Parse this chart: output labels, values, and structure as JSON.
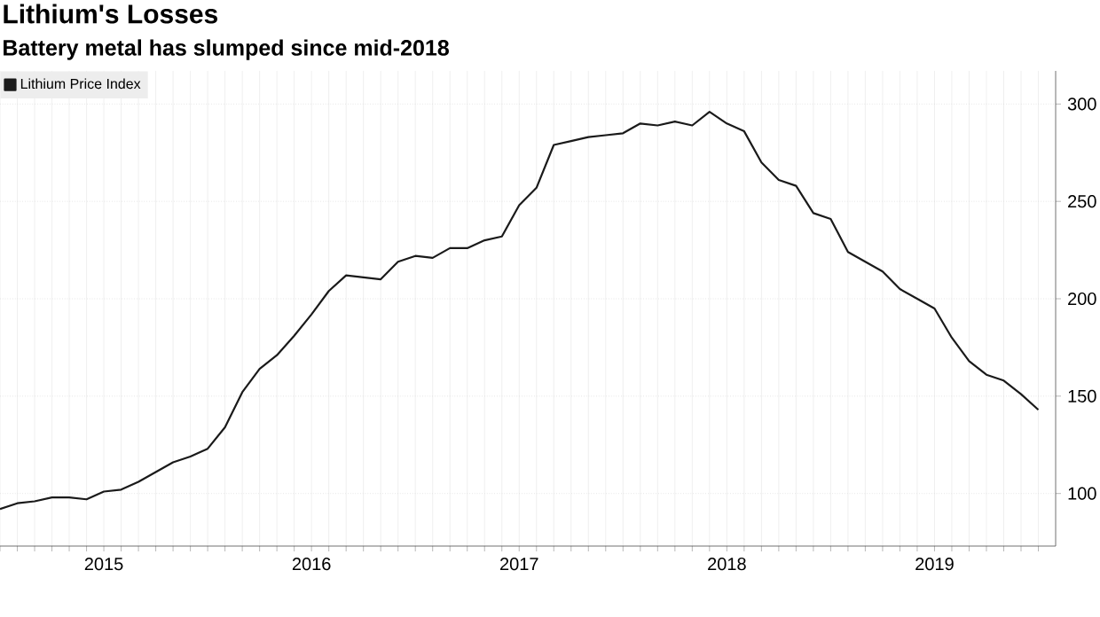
{
  "chart_data": {
    "type": "line",
    "title": "Lithium's Losses",
    "subtitle": "Battery metal has slumped since mid-2018",
    "x": [
      "2015-01",
      "2015-02",
      "2015-03",
      "2015-04",
      "2015-05",
      "2015-06",
      "2015-07",
      "2015-08",
      "2015-09",
      "2015-10",
      "2015-11",
      "2015-12",
      "2016-01",
      "2016-02",
      "2016-03",
      "2016-04",
      "2016-05",
      "2016-06",
      "2016-07",
      "2016-08",
      "2016-09",
      "2016-10",
      "2016-11",
      "2016-12",
      "2017-01",
      "2017-02",
      "2017-03",
      "2017-04",
      "2017-05",
      "2017-06",
      "2017-07",
      "2017-08",
      "2017-09",
      "2017-10",
      "2017-11",
      "2017-12",
      "2018-01",
      "2018-02",
      "2018-03",
      "2018-04",
      "2018-05",
      "2018-06",
      "2018-07",
      "2018-08",
      "2018-09",
      "2018-10",
      "2018-11",
      "2018-12",
      "2019-01",
      "2019-02",
      "2019-03",
      "2019-04",
      "2019-05",
      "2019-06",
      "2019-07",
      "2019-08",
      "2019-09",
      "2019-10",
      "2019-11",
      "2019-12",
      "2020-01"
    ],
    "series": [
      {
        "name": "Lithium Price Index",
        "color": "#1a1a1a",
        "values": [
          92,
          95,
          96,
          98,
          98,
          97,
          101,
          102,
          106,
          111,
          116,
          119,
          123,
          134,
          152,
          164,
          171,
          181,
          192,
          204,
          212,
          211,
          210,
          219,
          222,
          221,
          226,
          226,
          230,
          232,
          248,
          257,
          279,
          281,
          283,
          284,
          285,
          290,
          289,
          291,
          289,
          296,
          290,
          286,
          270,
          261,
          258,
          244,
          241,
          224,
          219,
          214,
          205,
          200,
          195,
          180,
          168,
          161,
          158,
          151,
          143
        ]
      }
    ],
    "xlim": [
      "2015-01",
      "2020-02"
    ],
    "xticks": [
      {
        "value": "2015-01",
        "label": null
      },
      {
        "value": "2015-02",
        "label": null
      },
      {
        "value": "2015-03",
        "label": null
      },
      {
        "value": "2015-04",
        "label": null
      },
      {
        "value": "2015-05",
        "label": null
      },
      {
        "value": "2015-06",
        "label": null
      },
      {
        "value": "2015-07",
        "label": "2015"
      },
      {
        "value": "2015-08",
        "label": null
      },
      {
        "value": "2015-09",
        "label": null
      },
      {
        "value": "2015-10",
        "label": null
      },
      {
        "value": "2015-11",
        "label": null
      },
      {
        "value": "2015-12",
        "label": null
      },
      {
        "value": "2016-01",
        "label": null
      },
      {
        "value": "2016-02",
        "label": null
      },
      {
        "value": "2016-03",
        "label": null
      },
      {
        "value": "2016-04",
        "label": null
      },
      {
        "value": "2016-05",
        "label": null
      },
      {
        "value": "2016-06",
        "label": null
      },
      {
        "value": "2016-07",
        "label": "2016"
      },
      {
        "value": "2016-08",
        "label": null
      },
      {
        "value": "2016-09",
        "label": null
      },
      {
        "value": "2016-10",
        "label": null
      },
      {
        "value": "2016-11",
        "label": null
      },
      {
        "value": "2016-12",
        "label": null
      },
      {
        "value": "2017-01",
        "label": null
      },
      {
        "value": "2017-02",
        "label": null
      },
      {
        "value": "2017-03",
        "label": null
      },
      {
        "value": "2017-04",
        "label": null
      },
      {
        "value": "2017-05",
        "label": null
      },
      {
        "value": "2017-06",
        "label": null
      },
      {
        "value": "2017-07",
        "label": "2017"
      },
      {
        "value": "2017-08",
        "label": null
      },
      {
        "value": "2017-09",
        "label": null
      },
      {
        "value": "2017-10",
        "label": null
      },
      {
        "value": "2017-11",
        "label": null
      },
      {
        "value": "2017-12",
        "label": null
      },
      {
        "value": "2018-01",
        "label": null
      },
      {
        "value": "2018-02",
        "label": null
      },
      {
        "value": "2018-03",
        "label": null
      },
      {
        "value": "2018-04",
        "label": null
      },
      {
        "value": "2018-05",
        "label": null
      },
      {
        "value": "2018-06",
        "label": null
      },
      {
        "value": "2018-07",
        "label": "2018"
      },
      {
        "value": "2018-08",
        "label": null
      },
      {
        "value": "2018-09",
        "label": null
      },
      {
        "value": "2018-10",
        "label": null
      },
      {
        "value": "2018-11",
        "label": null
      },
      {
        "value": "2018-12",
        "label": null
      },
      {
        "value": "2019-01",
        "label": null
      },
      {
        "value": "2019-02",
        "label": null
      },
      {
        "value": "2019-03",
        "label": null
      },
      {
        "value": "2019-04",
        "label": null
      },
      {
        "value": "2019-05",
        "label": null
      },
      {
        "value": "2019-06",
        "label": null
      },
      {
        "value": "2019-07",
        "label": "2019"
      },
      {
        "value": "2019-08",
        "label": null
      },
      {
        "value": "2019-09",
        "label": null
      },
      {
        "value": "2019-10",
        "label": null
      },
      {
        "value": "2019-11",
        "label": null
      },
      {
        "value": "2019-12",
        "label": null
      },
      {
        "value": "2020-01",
        "label": null
      }
    ],
    "ylim": [
      73,
      317
    ],
    "yticks": [
      100,
      150,
      200,
      250,
      300
    ],
    "grid": true,
    "legend": "top left",
    "marker": "none",
    "line_style": "solid"
  }
}
